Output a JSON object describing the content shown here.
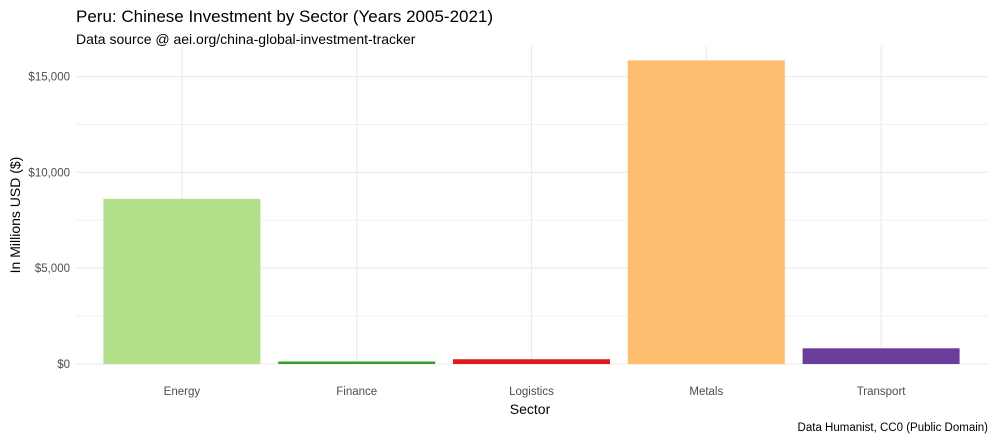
{
  "chart_data": {
    "type": "bar",
    "title": "Peru: Chinese Investment by Sector (Years 2005-2021)",
    "subtitle": "Data source @ aei.org/china-global-investment-tracker",
    "caption": "Data Humanist, CC0 (Public Domain)",
    "xlabel": "Sector",
    "ylabel": "In Millions USD ($)",
    "categories": [
      "Energy",
      "Finance",
      "Logistics",
      "Metals",
      "Transport"
    ],
    "values": [
      8620,
      130,
      250,
      15850,
      820
    ],
    "colors": [
      "#b2df8a",
      "#33a02c",
      "#e31a1c",
      "#fdbf6f",
      "#6a3d9a"
    ],
    "y_ticks": [
      0,
      5000,
      10000,
      15000
    ],
    "y_tick_labels": [
      "$0",
      "$5,000",
      "$10,000",
      "$15,000"
    ],
    "ylim": [
      0,
      16600
    ],
    "grid": true,
    "legend": "none"
  }
}
